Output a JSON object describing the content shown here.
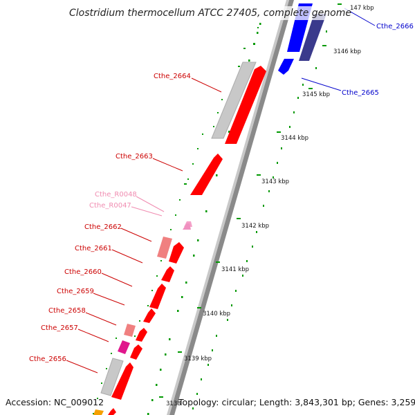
{
  "title": "Clostridium thermocellum ATCC 27405, complete genome",
  "accession": "Accession: NC_009012",
  "topology": "Topology: circular; Length: 3,843,301 bp; Genes: 3,259",
  "scale_labels": [
    "3138",
    "3139 kbp",
    "3140 kbp",
    "3141 kbp",
    "3142 kbp",
    "3143 kbp",
    "3144 kbp",
    "3145 kbp",
    "3146 kbp",
    "147 kbp"
  ],
  "gene_labels": {
    "cthe_2666": "Cthe_2666",
    "cthe_2665": "Cthe_2665",
    "cthe_2664": "Cthe_2664",
    "cthe_2663": "Cthe_2663",
    "cthe_r0048": "Cthe_R0048",
    "cthe_r0047": "Cthe_R0047",
    "cthe_2662": "Cthe_2662",
    "cthe_2661": "Cthe_2661",
    "cthe_2660": "Cthe_2660",
    "cthe_2659": "Cthe_2659",
    "cthe_2658": "Cthe_2658",
    "cthe_2657": "Cthe_2657",
    "cthe_2656": "Cthe_2656"
  },
  "colors": {
    "forward_cds": "#ff0000",
    "forward_light": "#f08080",
    "rna": "#f4a0c8",
    "magenta": "#e0168c",
    "reverse_cds": "#0000ff",
    "reverse_dark": "#3a3a8c",
    "backbone": "#909090",
    "ticks": "#009900"
  }
}
